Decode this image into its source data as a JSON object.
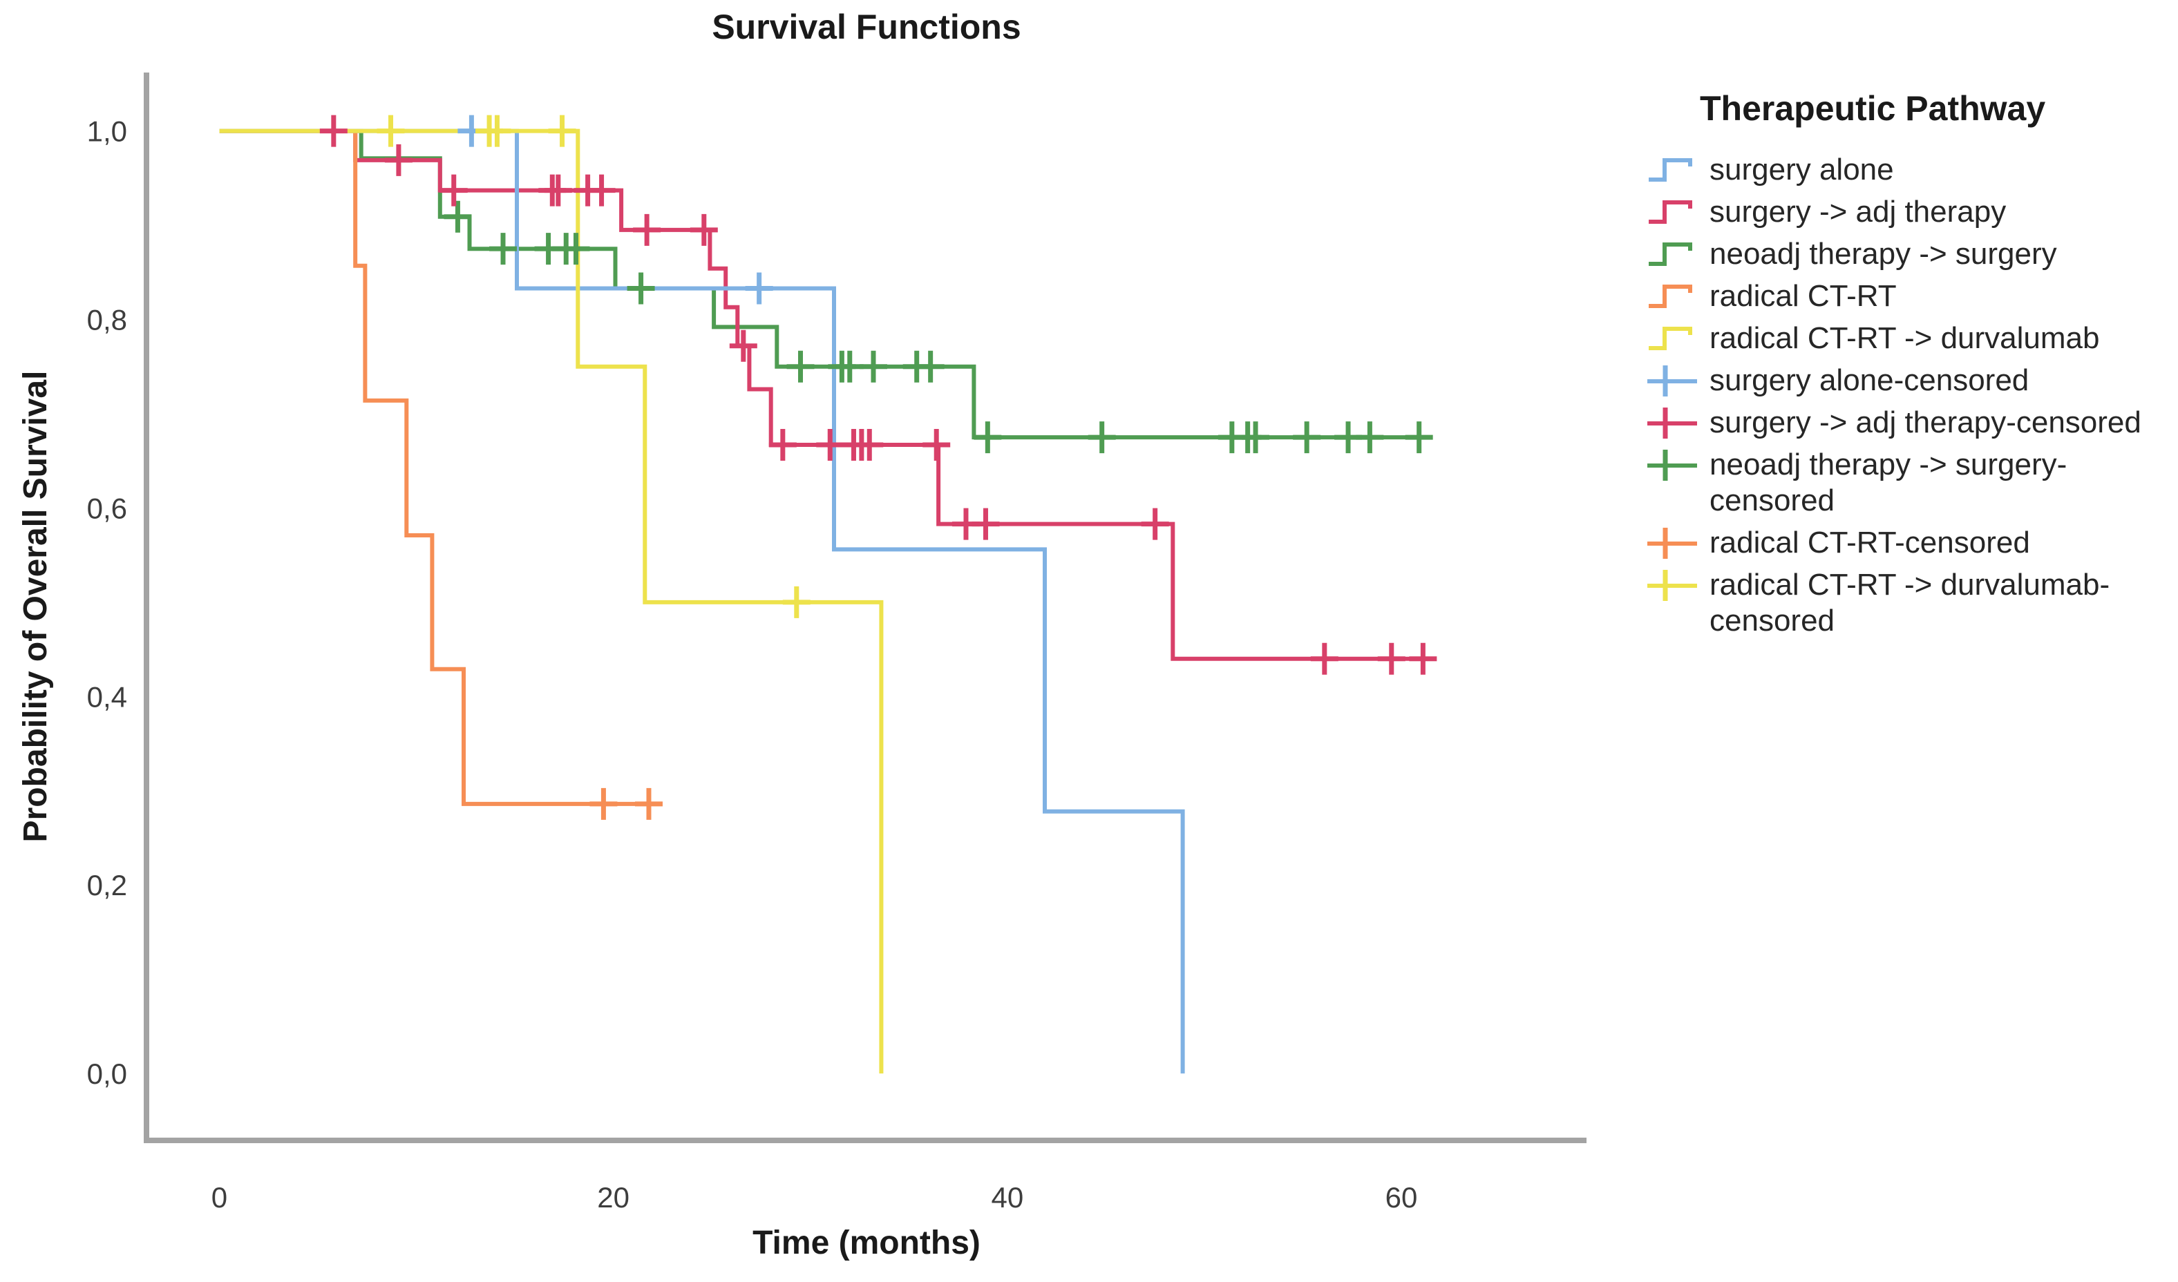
{
  "chart_data": {
    "type": "line",
    "subtype": "kaplan-meier-step",
    "title": "Survival Functions",
    "xlabel": "Time (months)",
    "ylabel": "Probability of Overall Survival",
    "grid": false,
    "legend_position": "right",
    "xlim": [
      -3.7,
      69.4
    ],
    "ylim": [
      -0.071,
      1.062
    ],
    "x_ticks": [
      {
        "v": 0,
        "label": "0"
      },
      {
        "v": 20,
        "label": "20"
      },
      {
        "v": 40,
        "label": "40"
      },
      {
        "v": 60,
        "label": "60"
      }
    ],
    "y_ticks": [
      {
        "v": 1.0,
        "label": "1,0"
      },
      {
        "v": 0.8,
        "label": "0,8"
      },
      {
        "v": 0.6,
        "label": "0,6"
      },
      {
        "v": 0.4,
        "label": "0,4"
      },
      {
        "v": 0.2,
        "label": "0,2"
      },
      {
        "v": 0.0,
        "label": "0,0"
      }
    ],
    "axis_color": "#a3a3a3",
    "series": [
      {
        "name": "neoadj therapy -> surgery",
        "color": "#4F9C52",
        "steps": [
          [
            0,
            1
          ],
          [
            7.2,
            1
          ],
          [
            7.2,
            0.971
          ],
          [
            11.2,
            0.971
          ],
          [
            11.2,
            0.909
          ],
          [
            12.7,
            0.909
          ],
          [
            12.7,
            0.875
          ],
          [
            20.1,
            0.875
          ],
          [
            20.1,
            0.833
          ],
          [
            25.1,
            0.833
          ],
          [
            25.1,
            0.792
          ],
          [
            28.3,
            0.792
          ],
          [
            28.3,
            0.75
          ],
          [
            38.3,
            0.75
          ],
          [
            38.3,
            0.675
          ],
          [
            61.2,
            0.675
          ]
        ],
        "censors": [
          [
            12.1,
            0.909
          ],
          [
            14.4,
            0.875
          ],
          [
            16.7,
            0.875
          ],
          [
            17.6,
            0.875
          ],
          [
            18.1,
            0.875
          ],
          [
            21.4,
            0.833
          ],
          [
            29.5,
            0.75
          ],
          [
            31.6,
            0.75
          ],
          [
            32.0,
            0.75
          ],
          [
            33.2,
            0.75
          ],
          [
            35.4,
            0.75
          ],
          [
            36.1,
            0.75
          ],
          [
            39.0,
            0.675
          ],
          [
            44.8,
            0.675
          ],
          [
            51.4,
            0.675
          ],
          [
            52.2,
            0.675
          ],
          [
            52.6,
            0.675
          ],
          [
            55.2,
            0.675
          ],
          [
            57.3,
            0.675
          ],
          [
            58.4,
            0.675
          ],
          [
            60.9,
            0.675
          ]
        ]
      },
      {
        "name": "surgery -> adj therapy",
        "color": "#D84069",
        "steps": [
          [
            0,
            1
          ],
          [
            6.9,
            1
          ],
          [
            6.9,
            0.969
          ],
          [
            11.2,
            0.969
          ],
          [
            11.2,
            0.937
          ],
          [
            20.4,
            0.937
          ],
          [
            20.4,
            0.895
          ],
          [
            24.9,
            0.895
          ],
          [
            24.9,
            0.854
          ],
          [
            25.7,
            0.854
          ],
          [
            25.7,
            0.813
          ],
          [
            26.3,
            0.813
          ],
          [
            26.3,
            0.772
          ],
          [
            26.9,
            0.772
          ],
          [
            26.9,
            0.726
          ],
          [
            28.0,
            0.726
          ],
          [
            28.0,
            0.667
          ],
          [
            36.5,
            0.667
          ],
          [
            36.5,
            0.583
          ],
          [
            48.4,
            0.583
          ],
          [
            48.4,
            0.44
          ],
          [
            61.7,
            0.44
          ]
        ],
        "censors": [
          [
            5.8,
            1
          ],
          [
            9.1,
            0.969
          ],
          [
            11.9,
            0.937
          ],
          [
            16.9,
            0.937
          ],
          [
            17.2,
            0.937
          ],
          [
            18.7,
            0.937
          ],
          [
            19.4,
            0.937
          ],
          [
            21.7,
            0.895
          ],
          [
            24.6,
            0.895
          ],
          [
            26.6,
            0.772
          ],
          [
            28.6,
            0.667
          ],
          [
            31.0,
            0.667
          ],
          [
            32.2,
            0.667
          ],
          [
            32.6,
            0.667
          ],
          [
            33.0,
            0.667
          ],
          [
            36.4,
            0.667
          ],
          [
            37.9,
            0.583
          ],
          [
            38.9,
            0.583
          ],
          [
            47.5,
            0.583
          ],
          [
            56.1,
            0.44
          ],
          [
            59.5,
            0.44
          ],
          [
            61.1,
            0.44
          ]
        ]
      },
      {
        "name": "radical CT-RT",
        "color": "#F68E55",
        "steps": [
          [
            0,
            1
          ],
          [
            6.9,
            1
          ],
          [
            6.9,
            0.857
          ],
          [
            7.4,
            0.857
          ],
          [
            7.4,
            0.714
          ],
          [
            9.5,
            0.714
          ],
          [
            9.5,
            0.571
          ],
          [
            10.8,
            0.571
          ],
          [
            10.8,
            0.429
          ],
          [
            12.4,
            0.429
          ],
          [
            12.4,
            0.286
          ],
          [
            21.9,
            0.286
          ]
        ],
        "censors": [
          [
            19.5,
            0.286
          ],
          [
            21.8,
            0.286
          ]
        ]
      },
      {
        "name": "surgery alone",
        "color": "#7FB1E3",
        "steps": [
          [
            0,
            1
          ],
          [
            15.1,
            1
          ],
          [
            15.1,
            0.833
          ],
          [
            31.2,
            0.833
          ],
          [
            31.2,
            0.556
          ],
          [
            41.9,
            0.556
          ],
          [
            41.9,
            0.278
          ],
          [
            48.9,
            0.278
          ],
          [
            48.9,
            0
          ]
        ],
        "censors": [
          [
            12.8,
            1
          ],
          [
            27.4,
            0.833
          ]
        ]
      },
      {
        "name": "radical CT-RT -> durvalumab",
        "color": "#EDE24C",
        "steps": [
          [
            0,
            1
          ],
          [
            18.2,
            1
          ],
          [
            18.2,
            0.75
          ],
          [
            21.6,
            0.75
          ],
          [
            21.6,
            0.5
          ],
          [
            33.6,
            0.5
          ],
          [
            33.6,
            0
          ]
        ],
        "censors": [
          [
            8.7,
            1
          ],
          [
            13.7,
            1
          ],
          [
            14.1,
            1
          ],
          [
            17.4,
            1
          ],
          [
            29.3,
            0.5
          ]
        ]
      }
    ]
  },
  "legend": {
    "title": "Therapeutic Pathway",
    "items": [
      {
        "label": "surgery alone",
        "type": "line",
        "color": "#7FB1E3"
      },
      {
        "label": "surgery -> adj therapy",
        "type": "line",
        "color": "#D84069"
      },
      {
        "label": "neoadj therapy -> surgery",
        "type": "line",
        "color": "#4F9C52"
      },
      {
        "label": "radical CT-RT",
        "type": "line",
        "color": "#F68E55"
      },
      {
        "label": "radical CT-RT -> durvalumab",
        "type": "line",
        "color": "#EDE24C"
      },
      {
        "label": "surgery alone-censored",
        "type": "censor",
        "color": "#7FB1E3"
      },
      {
        "label": "surgery -> adj therapy-censored",
        "type": "censor",
        "color": "#D84069"
      },
      {
        "label": "neoadj therapy -> surgery-censored",
        "type": "censor",
        "color": "#4F9C52"
      },
      {
        "label": "radical CT-RT-censored",
        "type": "censor",
        "color": "#F68E55"
      },
      {
        "label": "radical CT-RT -> durvalumab-censored",
        "type": "censor",
        "color": "#EDE24C"
      }
    ]
  }
}
